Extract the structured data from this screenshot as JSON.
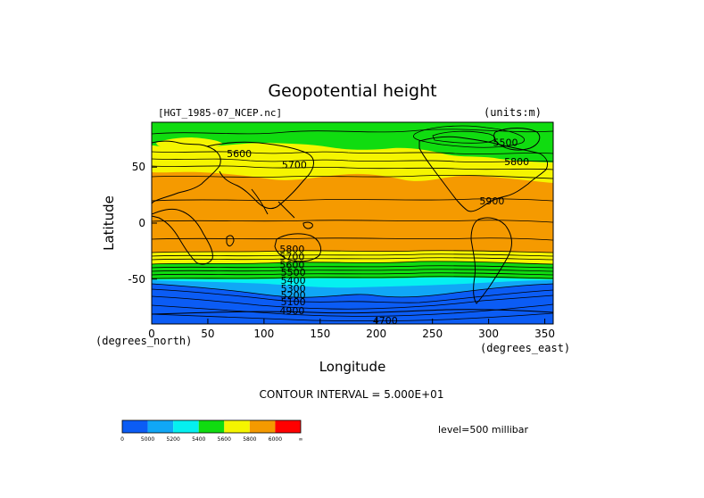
{
  "figure": {
    "title": "Geopotential height",
    "dataset": "[HGT_1985-07_NCEP.nc]",
    "units": "(units:m)",
    "contour_interval": "CONTOUR INTERVAL = 5.000E+01",
    "level": "level=500 millibar"
  },
  "axes": {
    "xlabel": "Longitude",
    "ylabel": "Latitude",
    "x_units": "(degrees_east)",
    "y_units": "(degrees_north)"
  },
  "chart_data": {
    "type": "contour-map",
    "xlim": [
      0,
      357.5
    ],
    "ylim": [
      -90,
      90
    ],
    "x_ticks": [
      {
        "value": 0,
        "label": "0"
      },
      {
        "value": 50,
        "label": "50"
      },
      {
        "value": 100,
        "label": "100"
      },
      {
        "value": 150,
        "label": "150"
      },
      {
        "value": 200,
        "label": "200"
      },
      {
        "value": 250,
        "label": "250"
      },
      {
        "value": 300,
        "label": "300"
      },
      {
        "value": 350,
        "label": "350"
      }
    ],
    "y_ticks": [
      {
        "value": 50,
        "label": "50"
      },
      {
        "value": 0,
        "label": "0"
      },
      {
        "value": -50,
        "label": "-50"
      }
    ],
    "contour_labels": [
      {
        "text": "5600",
        "lon": 78,
        "lat": 62
      },
      {
        "text": "5700",
        "lon": 127,
        "lat": 52
      },
      {
        "text": "5500",
        "lon": 315,
        "lat": 72
      },
      {
        "text": "5800",
        "lon": 325,
        "lat": 55
      },
      {
        "text": "5900",
        "lon": 303,
        "lat": 20
      },
      {
        "text": "5800",
        "lon": 125,
        "lat": -23
      },
      {
        "text": "5700",
        "lon": 125,
        "lat": -30
      },
      {
        "text": "5600",
        "lon": 125,
        "lat": -37
      },
      {
        "text": "5500",
        "lon": 126,
        "lat": -44
      },
      {
        "text": "5400",
        "lon": 126,
        "lat": -51
      },
      {
        "text": "5300",
        "lon": 126,
        "lat": -58
      },
      {
        "text": "5200",
        "lon": 126,
        "lat": -64
      },
      {
        "text": "5100",
        "lon": 126,
        "lat": -70
      },
      {
        "text": "4900",
        "lon": 125,
        "lat": -78
      },
      {
        "text": "4700",
        "lon": 208,
        "lat": -87
      }
    ],
    "color_scale": {
      "colors": [
        "#0b5cf5",
        "#10a7f6",
        "#05f0f0",
        "#10dc10",
        "#f5f500",
        "#f59a00",
        "#ff0000"
      ],
      "labels": [
        "0",
        "5000",
        "5200",
        "5400",
        "5600",
        "5800",
        "6000",
        "∞"
      ]
    }
  }
}
